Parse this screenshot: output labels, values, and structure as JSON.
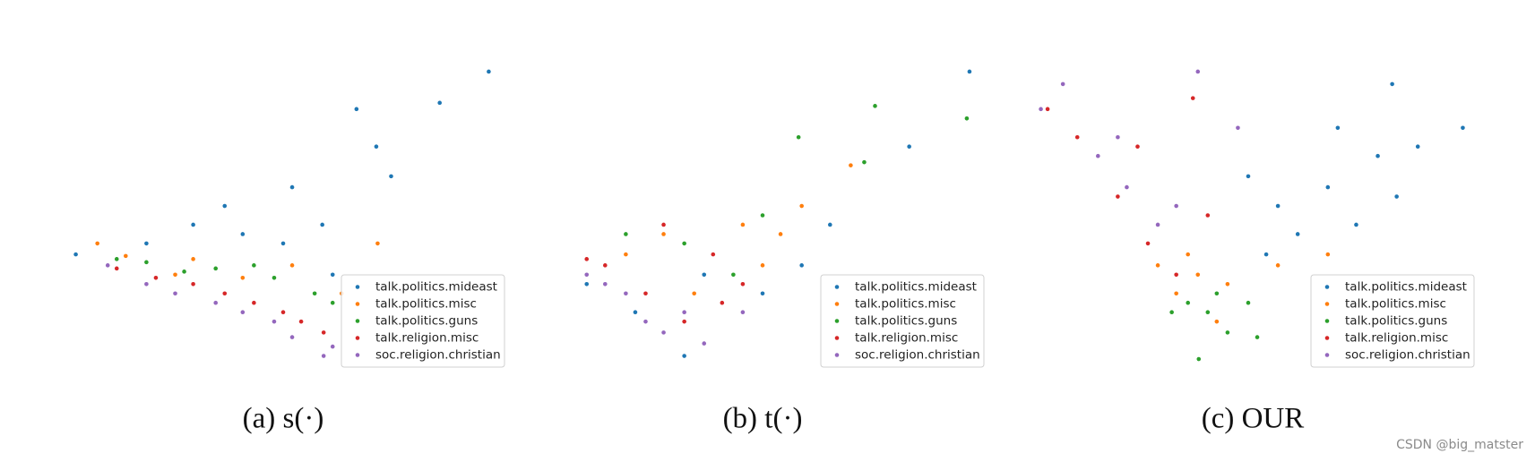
{
  "chart_data": [
    {
      "type": "scatter",
      "title": "(a) s(·)",
      "legend": "lower right",
      "xlim": [
        0,
        100
      ],
      "ylim": [
        0,
        100
      ],
      "series": [
        {
          "name": "talk.politics.mideast",
          "color": "#1f77b4",
          "x": [
            3.9,
            95.7,
            84.8,
            66.3,
            70.7,
            52,
            37,
            30,
            58.7,
            19.6,
            74,
            41,
            61,
            50
          ],
          "values": [
            37.5,
            96,
            86,
            84,
            72,
            59,
            53,
            47,
            47,
            41,
            62.5,
            44,
            31,
            41
          ]
        },
        {
          "name": "talk.politics.misc",
          "color": "#ff7f0e",
          "x": [
            71,
            52,
            30,
            15,
            41,
            63,
            26,
            8.7
          ],
          "values": [
            41,
            34,
            36,
            37,
            30,
            25,
            31,
            41
          ]
        },
        {
          "name": "talk.politics.guns",
          "color": "#2ca02c",
          "x": [
            19.6,
            35,
            48,
            57,
            43.5,
            13,
            61,
            28
          ],
          "values": [
            35,
            33,
            30,
            25,
            34,
            36,
            22,
            32
          ]
        },
        {
          "name": "talk.religion.misc",
          "color": "#d62728",
          "x": [
            21.7,
            37,
            50,
            59,
            30,
            43.5,
            13,
            54
          ],
          "values": [
            30,
            25,
            19,
            12.5,
            28,
            22,
            33,
            16
          ]
        },
        {
          "name": "soc.religion.christian",
          "color": "#9467bd",
          "x": [
            19.6,
            35,
            48,
            59,
            41,
            52,
            26,
            61,
            11
          ],
          "values": [
            28,
            22,
            16,
            5,
            19,
            11,
            25,
            8,
            34
          ]
        }
      ]
    },
    {
      "type": "scatter",
      "title": "(b) t(·)",
      "legend": "lower right",
      "xlim": [
        0,
        100
      ],
      "ylim": [
        0,
        100
      ],
      "series": [
        {
          "name": "talk.politics.mideast",
          "color": "#1f77b4",
          "x": [
            96,
            82.6,
            32.6,
            50,
            21.7,
            58.7,
            10.9,
            37,
            65
          ],
          "values": [
            96,
            72,
            5,
            25,
            19,
            34,
            28,
            31,
            47
          ]
        },
        {
          "name": "talk.politics.misc",
          "color": "#ff7f0e",
          "x": [
            69.6,
            58.7,
            45.6,
            28,
            50,
            19.6,
            54,
            34.8
          ],
          "values": [
            66,
            53,
            47,
            44,
            34,
            37.5,
            44,
            25
          ]
        },
        {
          "name": "talk.politics.guns",
          "color": "#2ca02c",
          "x": [
            75,
            95.4,
            72.6,
            58,
            32.6,
            43.5,
            19.6,
            50
          ],
          "values": [
            85,
            81,
            67,
            75,
            41,
            31,
            44,
            50
          ]
        },
        {
          "name": "talk.religion.misc",
          "color": "#d62728",
          "x": [
            28,
            15,
            39,
            24,
            32.6,
            45.6,
            10.9,
            41
          ],
          "values": [
            47,
            34,
            37.5,
            25,
            16,
            28,
            36,
            22
          ]
        },
        {
          "name": "soc.religion.christian",
          "color": "#9467bd",
          "x": [
            28,
            19.6,
            37,
            10.9,
            32.6,
            24,
            45.6,
            15
          ],
          "values": [
            12.5,
            25,
            9,
            31,
            19,
            16,
            19,
            28
          ]
        }
      ]
    },
    {
      "type": "scatter",
      "title": "(c) OUR",
      "legend": "lower right",
      "xlim": [
        0,
        100
      ],
      "ylim": [
        0,
        100
      ],
      "series": [
        {
          "name": "talk.politics.mideast",
          "color": "#1f77b4",
          "x": [
            96.7,
            81,
            66.7,
            55.6,
            77.8,
            86.7,
            49,
            60,
            73,
            68.9,
            53,
            82
          ],
          "values": [
            78,
            92,
            59,
            53,
            69,
            72,
            62.5,
            44,
            47,
            78,
            37.5,
            56
          ]
        },
        {
          "name": "talk.politics.misc",
          "color": "#ff7f0e",
          "x": [
            37.8,
            33,
            44.4,
            55.6,
            28.9,
            42,
            66.7,
            35.6
          ],
          "values": [
            31,
            25,
            28,
            34,
            34,
            16,
            37.5,
            37.5
          ]
        },
        {
          "name": "talk.politics.guns",
          "color": "#2ca02c",
          "x": [
            40,
            44.4,
            38,
            35.6,
            49,
            42,
            51,
            32
          ],
          "values": [
            19,
            12.5,
            4,
            22,
            22,
            25,
            11,
            19
          ]
        },
        {
          "name": "talk.religion.misc",
          "color": "#d62728",
          "x": [
            4.4,
            20,
            26.7,
            33,
            36.7,
            24.4,
            11,
            40
          ],
          "values": [
            84,
            56,
            41,
            31,
            87.5,
            72,
            75,
            50
          ]
        },
        {
          "name": "soc.religion.christian",
          "color": "#9467bd",
          "x": [
            7.8,
            2.9,
            15.6,
            22,
            37.8,
            28.9,
            20,
            33,
            46.7
          ],
          "values": [
            92,
            84,
            69,
            59,
            96,
            47,
            75,
            53,
            78
          ]
        }
      ]
    }
  ],
  "watermark": "CSDN @big_matster"
}
